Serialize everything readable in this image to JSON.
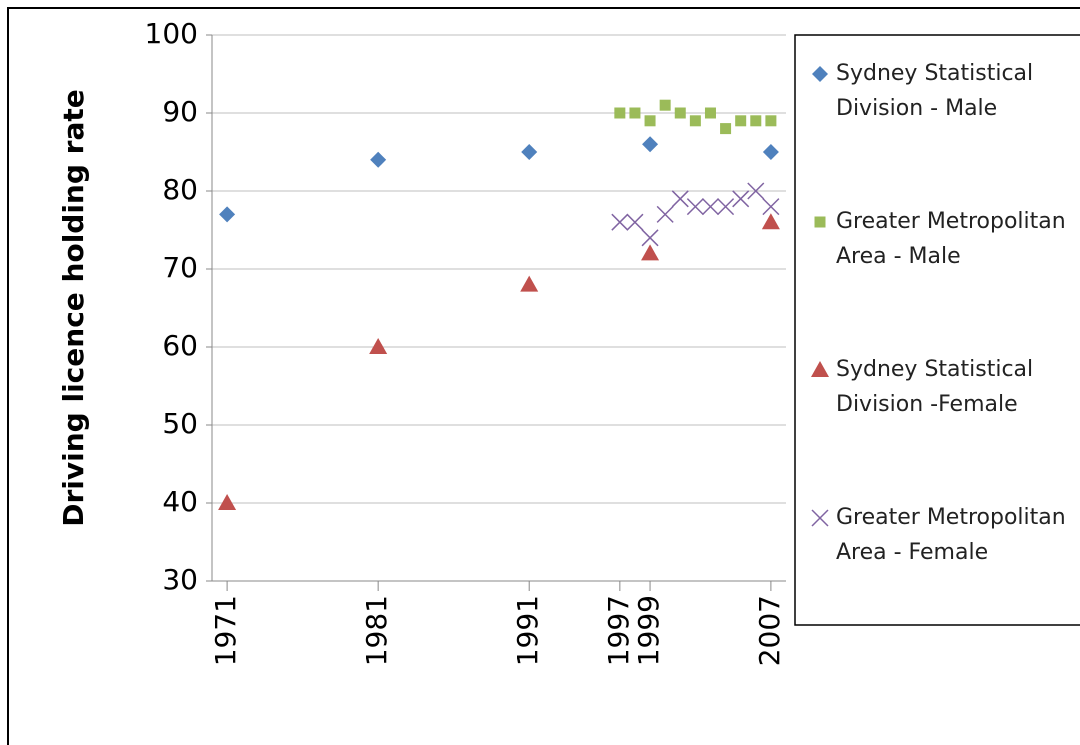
{
  "chart_data": {
    "type": "scatter",
    "y_label": "Driving licence holding rate",
    "xlim": [
      1970,
      2008
    ],
    "xticks": [
      1971,
      1981,
      1991,
      1997,
      1999,
      2007
    ],
    "ylim": [
      30,
      100
    ],
    "yticks": [
      30,
      40,
      50,
      60,
      70,
      80,
      90,
      100
    ],
    "grid": true,
    "legend": "right",
    "series": [
      {
        "name": "Sydney Statistical Division  - Male",
        "color": "#4f81bd",
        "marker": "diamond",
        "x": [
          1971,
          1981,
          1991,
          1999,
          2007
        ],
        "values": [
          77,
          84,
          85,
          86,
          85
        ]
      },
      {
        "name": "Greater Metropolitan Area - Male",
        "color": "#9bbb59",
        "marker": "square",
        "x": [
          1997,
          1998,
          1999,
          2000,
          2001,
          2002,
          2003,
          2004,
          2005,
          2006,
          2007
        ],
        "values": [
          90,
          90,
          89,
          91,
          90,
          89,
          90,
          88,
          89,
          89,
          89
        ]
      },
      {
        "name": "Sydney Statistical Division  -Female",
        "color": "#c0504d",
        "marker": "triangle",
        "x": [
          1971,
          1981,
          1991,
          1999,
          2007
        ],
        "values": [
          40,
          60,
          68,
          72,
          76
        ]
      },
      {
        "name": "Greater Metropolitan Area - Female",
        "color": "#8064a2",
        "marker": "x",
        "x": [
          1997,
          1998,
          1999,
          2000,
          2001,
          2002,
          2003,
          2004,
          2005,
          2006,
          2007
        ],
        "values": [
          76,
          76,
          74,
          77,
          79,
          78,
          78,
          78,
          79,
          80,
          78
        ]
      }
    ]
  }
}
